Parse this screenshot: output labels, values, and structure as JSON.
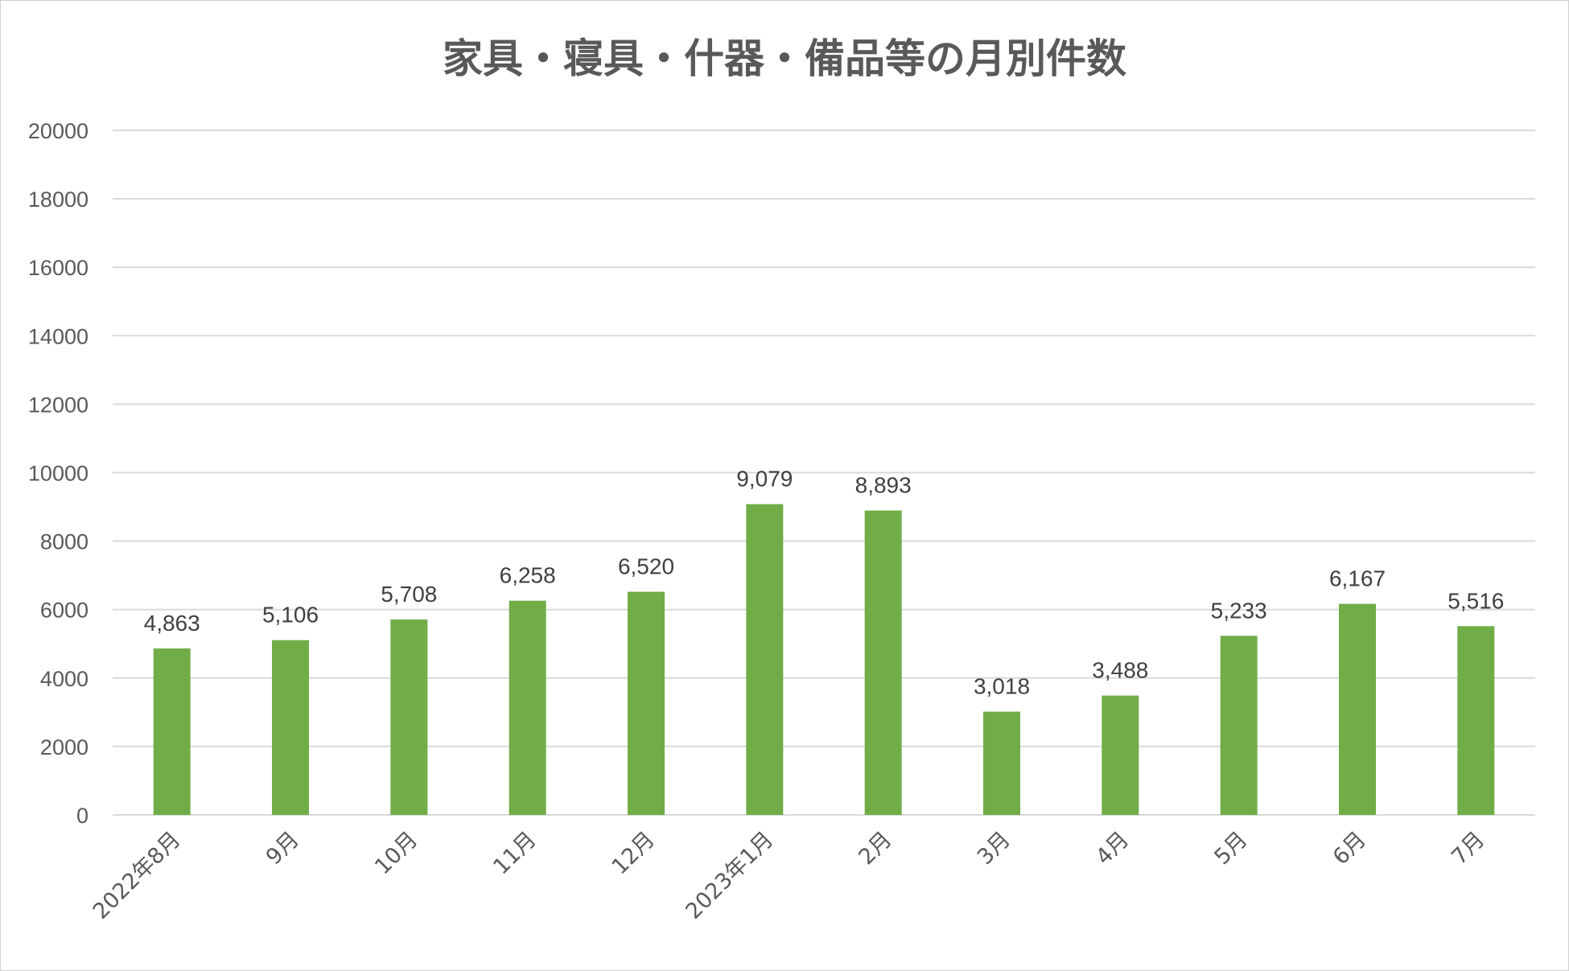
{
  "chart_data": {
    "type": "bar",
    "title": "家具・寝具・什器・備品等の月別件数",
    "categories": [
      "2022年8月",
      "9月",
      "10月",
      "11月",
      "12月",
      "2023年1月",
      "2月",
      "3月",
      "4月",
      "5月",
      "6月",
      "7月"
    ],
    "values": [
      4863,
      5106,
      5708,
      6258,
      6520,
      9079,
      8893,
      3018,
      3488,
      5233,
      6167,
      5516
    ],
    "data_labels": [
      "4,863",
      "5,106",
      "5,708",
      "6,258",
      "6,520",
      "9,079",
      "8,893",
      "3,018",
      "3,488",
      "5,233",
      "6,167",
      "5,516"
    ],
    "ylim": [
      0,
      20000
    ],
    "yticks": [
      0,
      2000,
      4000,
      6000,
      8000,
      10000,
      12000,
      14000,
      16000,
      18000,
      20000
    ],
    "ytick_labels": [
      "0",
      "2000",
      "4000",
      "6000",
      "8000",
      "10000",
      "12000",
      "14000",
      "16000",
      "18000",
      "20000"
    ],
    "xlabel": "",
    "ylabel": "",
    "grid": true,
    "legend": "none",
    "bar_color": "#70ad47"
  }
}
